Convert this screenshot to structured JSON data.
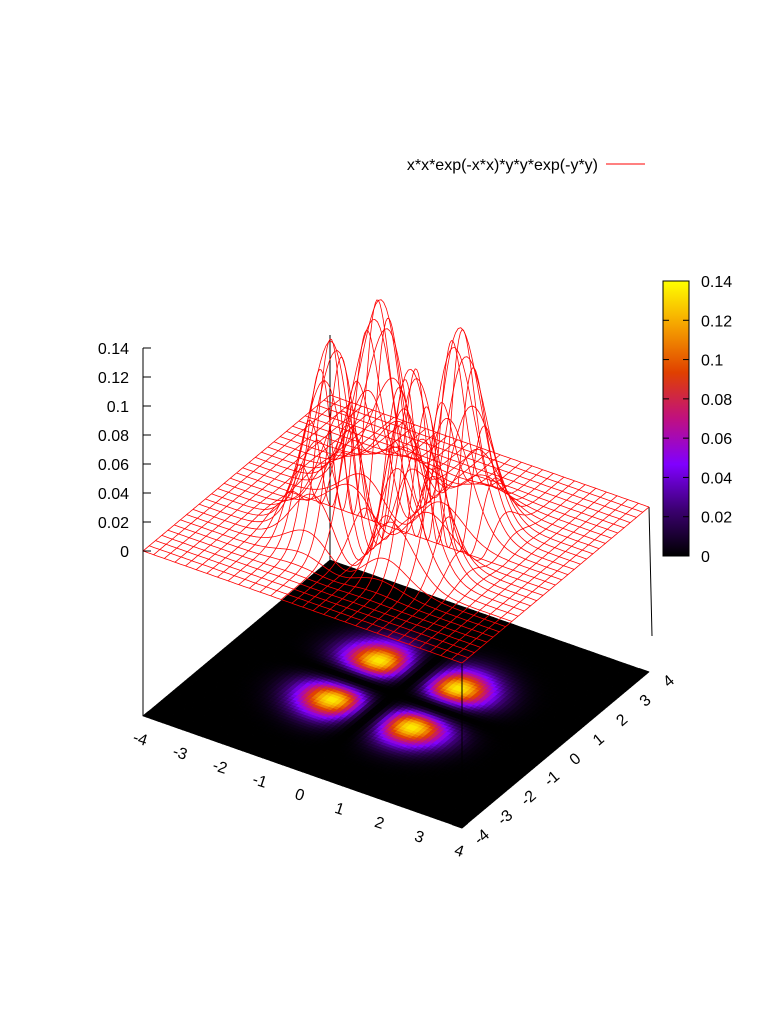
{
  "chart_data": {
    "type": "surface3d",
    "function": "x*x*exp(-x*x)*y*y*exp(-y*y)",
    "legend": {
      "label": "x*x*exp(-x*x)*y*y*exp(-y*y)",
      "placement": "top-right",
      "color": "#ff0000"
    },
    "x_range": [
      -4,
      4
    ],
    "y_range": [
      -4,
      4
    ],
    "z_range": [
      0,
      0.14
    ],
    "x_ticks": [
      "-4",
      "-3",
      "-2",
      "-1",
      "0",
      "1",
      "2",
      "3",
      "4"
    ],
    "y_ticks": [
      "-4",
      "-3",
      "-2",
      "-1",
      "0",
      "1",
      "2",
      "3",
      "4"
    ],
    "z_ticks": [
      "0",
      "0.02",
      "0.04",
      "0.06",
      "0.08",
      "0.1",
      "0.12",
      "0.14"
    ],
    "colorbar": {
      "range": [
        0,
        0.14
      ],
      "ticks": [
        "0",
        "0.02",
        "0.04",
        "0.06",
        "0.08",
        "0.1",
        "0.12",
        "0.14"
      ],
      "palette": [
        "#000000",
        "#3b0070",
        "#8000ff",
        "#c01080",
        "#e04000",
        "#f5a000",
        "#ffff00"
      ]
    },
    "peaks": [
      {
        "x": -1,
        "y": -1,
        "z": 0.135
      },
      {
        "x": -1,
        "y": 1,
        "z": 0.135
      },
      {
        "x": 1,
        "y": -1,
        "z": 0.135
      },
      {
        "x": 1,
        "y": 1,
        "z": 0.135
      }
    ],
    "surface_style": "red wireframe mesh",
    "base_style": "pm3d color map at bottom",
    "grid": false
  }
}
